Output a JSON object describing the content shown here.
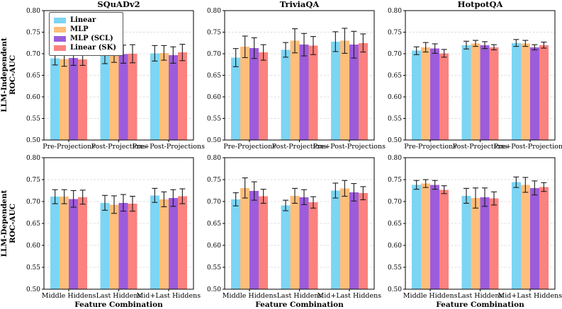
{
  "chart_data": {
    "type": "bar",
    "layout": "2x3 grid of grouped bar charts with error bars",
    "ylim": [
      0.5,
      0.8
    ],
    "yticks": [
      0.5,
      0.55,
      0.6,
      0.65,
      0.7,
      0.75,
      0.8
    ],
    "grid": "horizontal dashed gridlines at each y tick",
    "legend": {
      "position": "upper-left inside first panel",
      "entries": [
        "Linear",
        "MLP",
        "MLP (SCL)",
        "Linear (SK)"
      ]
    },
    "series_names": [
      "Linear",
      "MLP",
      "MLP (SCL)",
      "Linear (SK)"
    ],
    "series_colors": [
      "#7CD5F4",
      "#FFBE7A",
      "#9C5CDB",
      "#FB827E"
    ],
    "error_bar_color": "#1b1b1b",
    "grid_color": "#d9d9d9",
    "column_titles": [
      "SQuADv2",
      "TriviaQA",
      "HotpotQA"
    ],
    "rows": [
      {
        "label_line1": "LLM-Independent",
        "label_line2": "ROC-AUC",
        "categories": [
          "Pre-Projections",
          "Post-Projections",
          "Pre+Post-Projections"
        ],
        "xlabel": "",
        "panels": [
          {
            "title": "SQuADv2",
            "series": [
              {
                "name": "Linear",
                "values": [
                  0.689,
                  0.699,
                  0.701
                ],
                "errors": [
                  0.015,
                  0.022,
                  0.018
                ]
              },
              {
                "name": "MLP",
                "values": [
                  0.688,
                  0.701,
                  0.702
                ],
                "errors": [
                  0.017,
                  0.021,
                  0.017
                ]
              },
              {
                "name": "MLP (SCL)",
                "values": [
                  0.69,
                  0.699,
                  0.697
                ],
                "errors": [
                  0.017,
                  0.021,
                  0.019
                ]
              },
              {
                "name": "Linear (SK)",
                "values": [
                  0.687,
                  0.7,
                  0.703
                ],
                "errors": [
                  0.014,
                  0.021,
                  0.019
                ]
              }
            ]
          },
          {
            "title": "TriviaQA",
            "series": [
              {
                "name": "Linear",
                "values": [
                  0.691,
                  0.709,
                  0.728
                ],
                "errors": [
                  0.021,
                  0.017,
                  0.023
                ]
              },
              {
                "name": "MLP",
                "values": [
                  0.716,
                  0.73,
                  0.73
                ],
                "errors": [
                  0.025,
                  0.028,
                  0.029
                ]
              },
              {
                "name": "MLP (SCL)",
                "values": [
                  0.713,
                  0.721,
                  0.721
                ],
                "errors": [
                  0.024,
                  0.026,
                  0.031
                ]
              },
              {
                "name": "Linear (SK)",
                "values": [
                  0.703,
                  0.719,
                  0.725
                ],
                "errors": [
                  0.018,
                  0.021,
                  0.021
                ]
              }
            ]
          },
          {
            "title": "HotpotQA",
            "series": [
              {
                "name": "Linear",
                "values": [
                  0.707,
                  0.72,
                  0.725
                ],
                "errors": [
                  0.009,
                  0.009,
                  0.008
                ]
              },
              {
                "name": "MLP",
                "values": [
                  0.715,
                  0.724,
                  0.724
                ],
                "errors": [
                  0.011,
                  0.007,
                  0.007
                ]
              },
              {
                "name": "MLP (SCL)",
                "values": [
                  0.712,
                  0.72,
                  0.715
                ],
                "errors": [
                  0.011,
                  0.008,
                  0.006
                ]
              },
              {
                "name": "Linear (SK)",
                "values": [
                  0.701,
                  0.715,
                  0.72
                ],
                "errors": [
                  0.009,
                  0.006,
                  0.007
                ]
              }
            ]
          }
        ]
      },
      {
        "label_line1": "LLM-Dependent",
        "label_line2": "ROC-AUC",
        "categories": [
          "Middle Hiddens",
          "Last Hiddens",
          "Mid+Last Hiddens"
        ],
        "xlabel": "Feature Combination",
        "panels": [
          {
            "title": "",
            "series": [
              {
                "name": "Linear",
                "values": [
                  0.711,
                  0.697,
                  0.714
                ],
                "errors": [
                  0.016,
                  0.017,
                  0.016
                ]
              },
              {
                "name": "MLP",
                "values": [
                  0.711,
                  0.693,
                  0.705
                ],
                "errors": [
                  0.016,
                  0.02,
                  0.017
                ]
              },
              {
                "name": "MLP (SCL)",
                "values": [
                  0.706,
                  0.697,
                  0.708
                ],
                "errors": [
                  0.019,
                  0.019,
                  0.019
                ]
              },
              {
                "name": "Linear (SK)",
                "values": [
                  0.71,
                  0.695,
                  0.712
                ],
                "errors": [
                  0.016,
                  0.017,
                  0.017
                ]
              }
            ]
          },
          {
            "title": "",
            "series": [
              {
                "name": "Linear",
                "values": [
                  0.705,
                  0.691,
                  0.725
                ],
                "errors": [
                  0.015,
                  0.012,
                  0.017
                ]
              },
              {
                "name": "MLP",
                "values": [
                  0.731,
                  0.713,
                  0.73
                ],
                "errors": [
                  0.023,
                  0.017,
                  0.018
                ]
              },
              {
                "name": "MLP (SCL)",
                "values": [
                  0.724,
                  0.71,
                  0.721
                ],
                "errors": [
                  0.021,
                  0.017,
                  0.02
                ]
              },
              {
                "name": "Linear (SK)",
                "values": [
                  0.712,
                  0.698,
                  0.719
                ],
                "errors": [
                  0.016,
                  0.013,
                  0.015
                ]
              }
            ]
          },
          {
            "title": "",
            "series": [
              {
                "name": "Linear",
                "values": [
                  0.738,
                  0.713,
                  0.744
                ],
                "errors": [
                  0.01,
                  0.017,
                  0.012
                ]
              },
              {
                "name": "MLP",
                "values": [
                  0.741,
                  0.708,
                  0.738
                ],
                "errors": [
                  0.009,
                  0.023,
                  0.017
                ]
              },
              {
                "name": "MLP (SCL)",
                "values": [
                  0.738,
                  0.71,
                  0.731
                ],
                "errors": [
                  0.01,
                  0.021,
                  0.016
                ]
              },
              {
                "name": "Linear (SK)",
                "values": [
                  0.727,
                  0.707,
                  0.733
                ],
                "errors": [
                  0.009,
                  0.015,
                  0.01
                ]
              }
            ]
          }
        ]
      }
    ]
  }
}
